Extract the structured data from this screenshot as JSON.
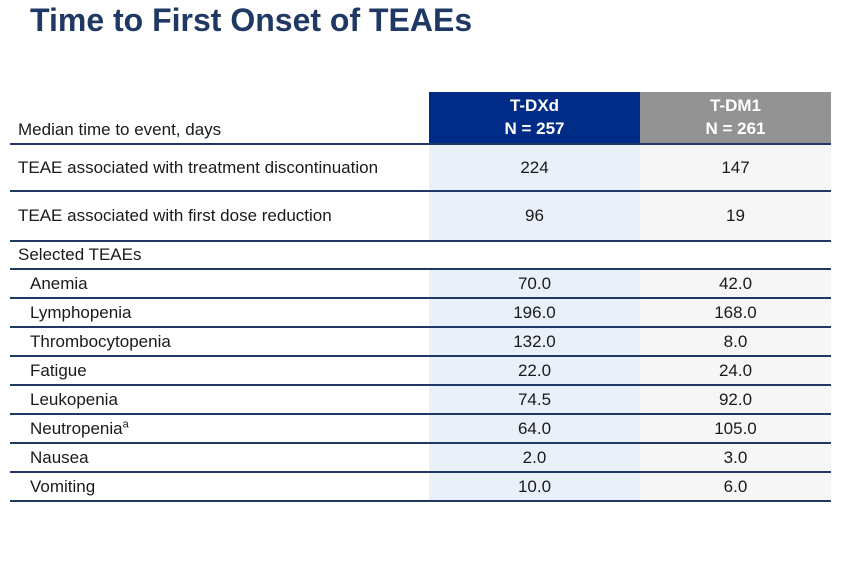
{
  "title": "Time to First Onset of TEAEs",
  "colors": {
    "title_navy": "#1F3864",
    "divider_navy": "#1F3864",
    "header_tdxd_blue": "#002C87",
    "header_tdm1_gray": "#939393",
    "column_tdxd_bg": "#EAF0F9",
    "column_tdm1_bg": "#F6F6F7",
    "body_text": "#1a1a1a",
    "header_text": "#ffffff"
  },
  "table": {
    "label_header": "Median time to event, days",
    "columns": [
      {
        "name": "T-DXd",
        "n": "N = 257"
      },
      {
        "name": "T-DM1",
        "n": "N = 261"
      }
    ],
    "rows": [
      {
        "label": "TEAE associated with treatment discontinuation",
        "tdxd": "224",
        "tdm1": "147"
      },
      {
        "label": "TEAE associated with first dose reduction",
        "tdxd": "96",
        "tdm1": "19"
      },
      {
        "label": "Selected TEAEs",
        "section": true
      },
      {
        "label": "Anemia",
        "tdxd": "70.0",
        "tdm1": "42.0"
      },
      {
        "label": "Lymphopenia",
        "tdxd": "196.0",
        "tdm1": "168.0"
      },
      {
        "label": "Thrombocytopenia",
        "tdxd": "132.0",
        "tdm1": "8.0"
      },
      {
        "label": "Fatigue",
        "tdxd": "22.0",
        "tdm1": "24.0"
      },
      {
        "label": "Leukopenia",
        "tdxd": "74.5",
        "tdm1": "92.0"
      },
      {
        "label": "Neutropenia",
        "sup": "a",
        "tdxd": "64.0",
        "tdm1": "105.0"
      },
      {
        "label": "Nausea",
        "tdxd": "2.0",
        "tdm1": "3.0"
      },
      {
        "label": "Vomiting",
        "tdxd": "10.0",
        "tdm1": "6.0"
      }
    ]
  }
}
